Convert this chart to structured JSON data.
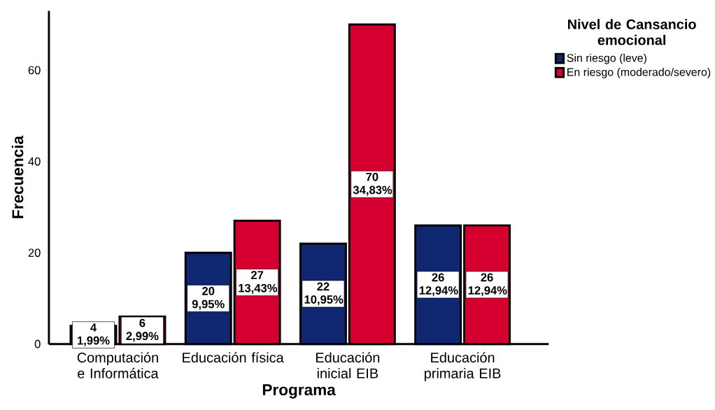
{
  "chart_data": {
    "type": "bar",
    "xlabel": "Programa",
    "ylabel": "Frecuencia",
    "legend_title": "Nivel de Cansancio emocional",
    "categories": [
      "Computación e Informática",
      "Educación física",
      "Educación inicial EIB",
      "Educación primaria EIB"
    ],
    "series": [
      {
        "name": "Sin riesgo (leve)",
        "color": "#0e2770",
        "values": [
          4,
          20,
          22,
          26
        ],
        "value_labels": [
          "4 1,99%",
          "20 9,95%",
          "22 10,95%",
          "26 12,94%"
        ]
      },
      {
        "name": "En riesgo (moderado/severo)",
        "color": "#d5002f",
        "values": [
          6,
          27,
          70,
          26
        ],
        "value_labels": [
          "6 2,99%",
          "27 13,43%",
          "70 34,83%",
          "26 12,94%"
        ]
      }
    ],
    "ylim": [
      0,
      73
    ],
    "yticks": [
      0,
      20,
      40,
      60
    ],
    "grid": false,
    "legend": "top right"
  }
}
